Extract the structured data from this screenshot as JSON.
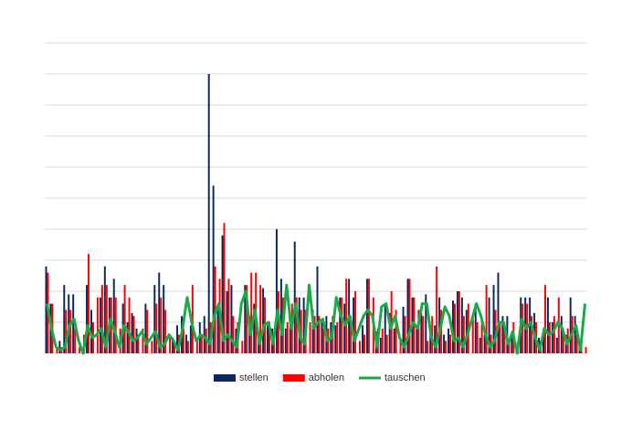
{
  "chart_data": {
    "type": "bar-line",
    "categories": [
      null,
      null,
      null,
      null,
      null,
      null,
      null,
      null,
      null,
      null,
      null,
      null,
      null,
      null,
      null,
      null,
      null,
      null,
      null,
      null,
      null,
      null,
      null,
      null,
      null,
      null,
      null,
      null,
      null,
      null,
      null,
      null,
      null,
      null,
      null,
      null,
      null,
      null,
      null,
      null,
      null,
      null,
      null,
      null,
      null,
      null,
      null,
      null,
      null,
      null,
      null,
      null,
      null,
      null,
      null,
      null,
      null,
      null,
      null,
      null,
      null,
      null,
      null,
      null,
      null,
      null,
      null,
      null,
      null,
      null,
      null,
      null,
      null,
      null,
      null,
      null,
      null,
      null,
      null,
      null,
      null,
      null,
      null,
      null,
      null,
      null,
      null,
      null,
      null,
      null,
      null,
      null,
      null,
      null,
      null,
      null,
      null,
      null,
      null,
      null,
      null,
      null,
      null,
      null,
      null,
      null,
      null,
      null,
      null,
      null,
      null,
      null,
      null,
      null,
      null,
      null,
      null,
      null,
      null,
      null
    ],
    "series": [
      {
        "name": "stellen",
        "color": "#0b2a5c",
        "kind": "bar",
        "values": [
          2.8,
          1.6,
          0,
          0.4,
          2.2,
          1.9,
          1.9,
          0,
          0,
          2.2,
          1.4,
          0,
          1.8,
          2.8,
          1.8,
          2.4,
          0,
          1.6,
          1,
          1.3,
          0.8,
          0,
          1.6,
          0,
          2.2,
          2.6,
          2.2,
          0,
          0.5,
          0.9,
          1.2,
          0.6,
          0.9,
          0,
          1,
          1.2,
          9,
          5.4,
          1.5,
          3.8,
          2,
          2.2,
          0.8,
          0,
          2.2,
          1.2,
          1.6,
          0.5,
          2.1,
          0.9,
          0.8,
          4,
          2.4,
          0.8,
          0.9,
          3.6,
          1.8,
          1.8,
          0,
          1.4,
          2.8,
          1,
          1.2,
          1,
          0.9,
          1.8,
          1.6,
          2.4,
          1.8,
          0,
          0.9,
          2.4,
          0,
          0.7,
          0.5,
          1.6,
          1.3,
          0.8,
          0,
          1.5,
          2.4,
          1.8,
          0.8,
          1.3,
          1.9,
          0.6,
          0.9,
          1.8,
          0.6,
          0.8,
          1.7,
          2,
          1.8,
          1.4,
          0,
          1.6,
          0.5,
          0.6,
          1.8,
          2.2,
          2.6,
          1.2,
          1.2,
          0.6,
          0,
          1.8,
          1.8,
          1.8,
          1.3,
          0.5,
          0.6,
          1.8,
          1,
          0.5,
          1.2,
          0.6,
          1.8,
          1.2,
          0.4,
          0
        ]
      },
      {
        "name": "abholen",
        "color": "#ff0000",
        "kind": "bar",
        "values": [
          2.6,
          1.6,
          0.2,
          0.2,
          1.4,
          1.4,
          0.8,
          0.2,
          0.6,
          3.2,
          1,
          1.8,
          2.2,
          2.2,
          1.8,
          1.8,
          0.8,
          2.2,
          1.8,
          1.2,
          0.6,
          0.8,
          1.4,
          0.4,
          1.6,
          1.8,
          1.4,
          0.6,
          0.4,
          0.6,
          0.8,
          0.4,
          2.2,
          0.4,
          0.6,
          0.8,
          1,
          2.8,
          2.4,
          4.2,
          2.4,
          1.2,
          1,
          0.4,
          2.2,
          2.6,
          2.6,
          2.2,
          1.8,
          1,
          0.6,
          2,
          1.8,
          1,
          1.6,
          1.8,
          1.4,
          1.4,
          1,
          1.2,
          1.2,
          0.8,
          0.8,
          1.2,
          1,
          1.8,
          2.4,
          1.2,
          2,
          0.4,
          0.6,
          2.4,
          1.8,
          0.8,
          0.8,
          0.6,
          2,
          1.4,
          0.4,
          1.2,
          2.4,
          1.8,
          1.4,
          1.2,
          0.4,
          1.2,
          2.8,
          1.4,
          0.4,
          0.6,
          1.6,
          2,
          1.2,
          1.6,
          1.2,
          1,
          1,
          2.2,
          0.6,
          1.4,
          1,
          0.8,
          0.4,
          1,
          0.4,
          1.6,
          1.6,
          1.2,
          1,
          0.4,
          2.2,
          1,
          1.2,
          1.8,
          0.6,
          0.8,
          1.2,
          0.6,
          0.6,
          0.2
        ]
      },
      {
        "name": "tauschen",
        "color": "#1aaa4a",
        "kind": "line",
        "values": [
          1.6,
          0.8,
          0.2,
          0.1,
          0.2,
          0.9,
          1.1,
          0.4,
          0,
          0.9,
          0.5,
          0.6,
          0.8,
          0.2,
          1.1,
          0.7,
          0.2,
          0.9,
          0.7,
          0.4,
          0.5,
          0.7,
          0.3,
          0.5,
          0.7,
          0.2,
          0.3,
          0.6,
          0.4,
          0.1,
          0.8,
          1.8,
          1,
          0.4,
          0.6,
          0.5,
          0.3,
          1.2,
          1.6,
          0.4,
          0.6,
          0.4,
          0.2,
          1.6,
          2,
          0.6,
          1.4,
          0.3,
          0.9,
          1,
          0.3,
          1.4,
          0.6,
          2.2,
          0.8,
          1.6,
          0.5,
          0.3,
          2.2,
          0.8,
          1,
          1.1,
          0.4,
          0.5,
          1.8,
          1.2,
          0.9,
          1.2,
          0.4,
          0.8,
          1.2,
          1.4,
          1.2,
          0.2,
          1.5,
          1.6,
          0.8,
          1.2,
          0.5,
          0.2,
          0.6,
          1,
          0.8,
          1.6,
          1.6,
          0.5,
          0.2,
          0.8,
          1.5,
          1.2,
          0.4,
          0.5,
          0.2,
          0.6,
          1.1,
          1.6,
          1.2,
          0.6,
          0.2,
          0.4,
          1,
          1,
          0.3,
          0.7,
          0,
          1.1,
          0.8,
          1,
          0.5,
          0.1,
          0.8,
          0.6,
          0.7,
          1,
          0.8,
          0.3,
          0.6,
          0.9,
          0.1,
          1.6
        ]
      }
    ],
    "ylim": [
      0,
      10
    ],
    "yticks": [
      0,
      1,
      2,
      3,
      4,
      5,
      6,
      7,
      8,
      9,
      10
    ],
    "grid": true,
    "legend": "bottom"
  }
}
